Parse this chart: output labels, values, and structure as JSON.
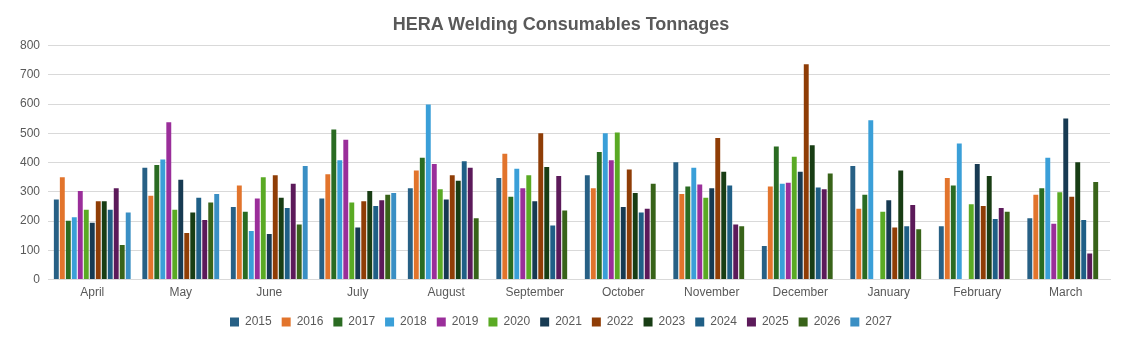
{
  "chart_data": {
    "type": "bar",
    "title": "HERA Welding Consumables Tonnages",
    "categories": [
      "April",
      "May",
      "June",
      "July",
      "August",
      "September",
      "October",
      "November",
      "December",
      "January",
      "February",
      "March"
    ],
    "series": [
      {
        "name": "2015",
        "color": "#276085",
        "values": [
          274,
          382,
          248,
          277,
          312,
          347,
          357,
          401,
          115,
          388,
          182,
          210
        ]
      },
      {
        "name": "2016",
        "color": "#e2742c",
        "values": [
          350,
          287,
          322,
          360,
          373,
          430,
          312,
          293,
          318,
          242,
          347,
          290
        ]
      },
      {
        "name": "2017",
        "color": "#2a6b22",
        "values": [
          201,
          392,
          232,
          513,
          417,
          283,
          436,
          318,
          455,
          290,
          322,
          312
        ]
      },
      {
        "name": "2018",
        "color": "#3a9fd8",
        "values": [
          213,
          411,
          166,
          408,
          599,
          379,
          500,
          382,
          328,
          545,
          465,
          417
        ]
      },
      {
        "name": "2019",
        "color": "#9a2e9a",
        "values": [
          303,
          538,
          277,
          478,
          395,
          312,
          408,
          325,
          331,
          null,
          null,
          191
        ]
      },
      {
        "name": "2020",
        "color": "#5aaa24",
        "values": [
          239,
          239,
          350,
          264,
          309,
          357,
          503,
          280,
          420,
          232,
          258,
          299
        ]
      },
      {
        "name": "2021",
        "color": "#173a52",
        "values": [
          194,
          341,
          156,
          178,
          274,
          268,
          248,
          312,
          369,
          271,
          395,
          551
        ]
      },
      {
        "name": "2022",
        "color": "#8f3d06",
        "values": [
          268,
          159,
          357,
          268,
          357,
          500,
          376,
          484,
          736,
          178,
          252,
          283
        ]
      },
      {
        "name": "2023",
        "color": "#183d14",
        "values": [
          268,
          229,
          280,
          303,
          338,
          385,
          296,
          369,
          459,
          373,
          354,
          401
        ]
      },
      {
        "name": "2024",
        "color": "#1f5f86",
        "values": [
          239,
          280,
          245,
          252,
          405,
          185,
          229,
          322,
          315,
          182,
          207,
          204
        ]
      },
      {
        "name": "2025",
        "color": "#5c1a5a",
        "values": [
          312,
          204,
          328,
          271,
          382,
          354,
          242,
          188,
          309,
          255,
          245,
          89
        ]
      },
      {
        "name": "2026",
        "color": "#386319",
        "values": [
          118,
          264,
          188,
          290,
          210,
          236,
          328,
          182,
          363,
          172,
          232,
          334
        ]
      },
      {
        "name": "2027",
        "color": "#3a8fc4",
        "values": [
          229,
          293,
          388,
          296,
          null,
          null,
          null,
          null,
          null,
          null,
          null,
          null
        ]
      }
    ],
    "ylim": [
      0,
      800
    ],
    "yticks": [
      0,
      100,
      200,
      300,
      400,
      500,
      600,
      700,
      800
    ],
    "grid": "y",
    "legend": "bottom"
  }
}
